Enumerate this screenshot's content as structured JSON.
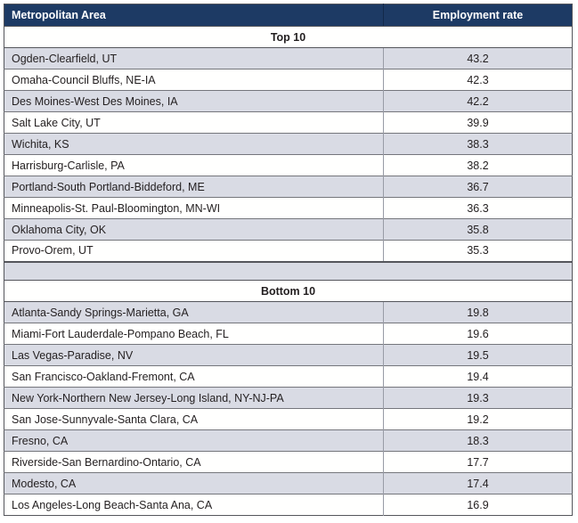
{
  "colors": {
    "header_bg": "#1d3a64",
    "header_text": "#ffffff",
    "header_divider": "#13294a",
    "stripe_row_bg": "#d9dbe4",
    "plain_row_bg": "#fffffe",
    "body_text": "#231f20",
    "grid_dark": "#55565c",
    "grid_mid": "#75767c",
    "grid_light": "#989ba5"
  },
  "chart_data": {
    "type": "table",
    "columns": [
      "Metropolitan Area",
      "Employment rate"
    ],
    "legend_position": "none",
    "grid": true,
    "sections": [
      {
        "label": "Top 10",
        "rows": [
          [
            "Ogden-Clearfield, UT",
            43.2
          ],
          [
            "Omaha-Council Bluffs, NE-IA",
            42.3
          ],
          [
            "Des Moines-West Des Moines, IA",
            42.2
          ],
          [
            "Salt Lake City, UT",
            39.9
          ],
          [
            "Wichita, KS",
            38.3
          ],
          [
            "Harrisburg-Carlisle, PA",
            38.2
          ],
          [
            "Portland-South Portland-Biddeford, ME",
            36.7
          ],
          [
            "Minneapolis-St. Paul-Bloomington, MN-WI",
            36.3
          ],
          [
            "Oklahoma City, OK",
            35.8
          ],
          [
            "Provo-Orem, UT",
            35.3
          ]
        ]
      },
      {
        "label": "Bottom 10",
        "rows": [
          [
            "Atlanta-Sandy Springs-Marietta, GA",
            19.8
          ],
          [
            "Miami-Fort Lauderdale-Pompano Beach, FL",
            19.6
          ],
          [
            "Las Vegas-Paradise, NV",
            19.5
          ],
          [
            "San Francisco-Oakland-Fremont, CA",
            19.4
          ],
          [
            "New York-Northern New Jersey-Long Island, NY-NJ-PA",
            19.3
          ],
          [
            "San Jose-Sunnyvale-Santa Clara, CA",
            19.2
          ],
          [
            "Fresno, CA",
            18.3
          ],
          [
            "Riverside-San Bernardino-Ontario, CA",
            17.7
          ],
          [
            "Modesto, CA",
            17.4
          ],
          [
            "Los Angeles-Long Beach-Santa Ana, CA",
            16.9
          ]
        ]
      }
    ]
  }
}
